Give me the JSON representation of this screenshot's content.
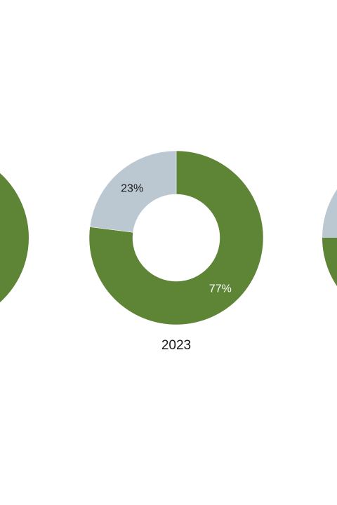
{
  "chart_data": [
    {
      "type": "pie",
      "variant": "donut",
      "title": "",
      "categories": [
        "",
        ""
      ],
      "values": [],
      "labels": [],
      "colors": [
        "#5e8436",
        "#bcc8d1"
      ],
      "partially_visible": "left-edge-clipped"
    },
    {
      "type": "pie",
      "variant": "donut",
      "title": "2023",
      "categories": [
        "",
        ""
      ],
      "values": [
        77,
        23
      ],
      "labels": [
        "77%",
        "23%"
      ],
      "colors": [
        "#5e8436",
        "#bcc8d1"
      ],
      "label_colors": [
        "#ffffff",
        "#1a1a1a"
      ]
    },
    {
      "type": "pie",
      "variant": "donut",
      "title": "",
      "categories": [
        "",
        ""
      ],
      "values": [],
      "labels": [],
      "colors": [
        "#5e8436",
        "#bcc8d1"
      ],
      "partially_visible": "right-edge-clipped"
    }
  ]
}
